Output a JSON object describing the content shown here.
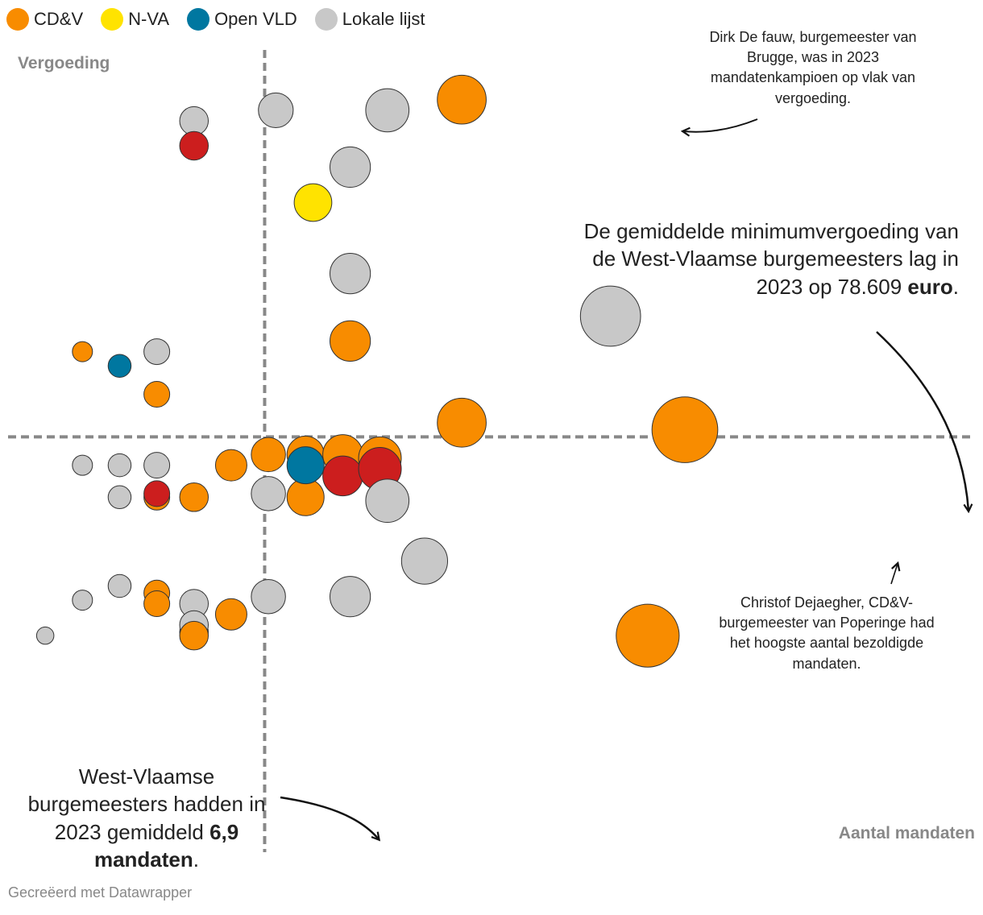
{
  "legend": [
    {
      "label": "CD&V",
      "color": "#f88c00"
    },
    {
      "label": "N-VA",
      "color": "#ffe300"
    },
    {
      "label": "Open VLD",
      "color": "#0077a0"
    },
    {
      "label": "Lokale lijst",
      "color": "#c8c8c8"
    }
  ],
  "chart_data": {
    "type": "scatter",
    "title": "",
    "xlabel": "Aantal mandaten",
    "ylabel": "Vergoeding",
    "xlim": [
      0,
      26
    ],
    "ylim": [
      0,
      11.3
    ],
    "reference_lines": {
      "x_average": 6.9,
      "y_average": 5.85
    },
    "size_encodes": "Aantal mandaten",
    "party_colors": {
      "CD&V": "#f88c00",
      "N-VA": "#ffe300",
      "Open VLD": "#0077a0",
      "Lokale lijst": "#c8c8c8",
      "Andere": "#cc1e1e"
    },
    "points": [
      {
        "x": 5.0,
        "y": 10.3,
        "party": "Lokale lijst"
      },
      {
        "x": 5.0,
        "y": 9.95,
        "party": "Andere"
      },
      {
        "x": 7.2,
        "y": 10.45,
        "party": "Lokale lijst"
      },
      {
        "x": 10.2,
        "y": 10.45,
        "party": "Lokale lijst"
      },
      {
        "x": 12.2,
        "y": 10.6,
        "party": "CD&V"
      },
      {
        "x": 9.2,
        "y": 9.65,
        "party": "Lokale lijst"
      },
      {
        "x": 8.2,
        "y": 9.15,
        "party": "N-VA"
      },
      {
        "x": 9.2,
        "y": 8.15,
        "party": "Lokale lijst"
      },
      {
        "x": 9.2,
        "y": 7.2,
        "party": "CD&V"
      },
      {
        "x": 16.2,
        "y": 7.55,
        "party": "Lokale lijst"
      },
      {
        "x": 2.0,
        "y": 7.05,
        "party": "CD&V"
      },
      {
        "x": 3.0,
        "y": 6.85,
        "party": "Open VLD"
      },
      {
        "x": 4.0,
        "y": 7.05,
        "party": "Lokale lijst"
      },
      {
        "x": 4.0,
        "y": 6.45,
        "party": "CD&V"
      },
      {
        "x": 12.2,
        "y": 6.05,
        "party": "CD&V"
      },
      {
        "x": 18.2,
        "y": 5.95,
        "party": "CD&V"
      },
      {
        "x": 2.0,
        "y": 5.45,
        "party": "Lokale lijst"
      },
      {
        "x": 3.0,
        "y": 5.45,
        "party": "Lokale lijst"
      },
      {
        "x": 4.0,
        "y": 5.45,
        "party": "Lokale lijst"
      },
      {
        "x": 3.0,
        "y": 5.0,
        "party": "Lokale lijst"
      },
      {
        "x": 4.0,
        "y": 5.0,
        "party": "CD&V"
      },
      {
        "x": 4.0,
        "y": 5.05,
        "party": "Andere"
      },
      {
        "x": 5.0,
        "y": 5.0,
        "party": "CD&V"
      },
      {
        "x": 6.0,
        "y": 5.45,
        "party": "CD&V"
      },
      {
        "x": 7.0,
        "y": 5.6,
        "party": "CD&V"
      },
      {
        "x": 7.0,
        "y": 5.05,
        "party": "Lokale lijst"
      },
      {
        "x": 8.0,
        "y": 5.6,
        "party": "CD&V"
      },
      {
        "x": 8.0,
        "y": 5.0,
        "party": "CD&V"
      },
      {
        "x": 8.0,
        "y": 5.45,
        "party": "Open VLD"
      },
      {
        "x": 9.0,
        "y": 5.6,
        "party": "CD&V"
      },
      {
        "x": 9.0,
        "y": 5.3,
        "party": "Andere"
      },
      {
        "x": 10.0,
        "y": 5.55,
        "party": "CD&V"
      },
      {
        "x": 10.0,
        "y": 5.4,
        "party": "Andere"
      },
      {
        "x": 10.2,
        "y": 4.95,
        "party": "Lokale lijst"
      },
      {
        "x": 11.2,
        "y": 4.1,
        "party": "Lokale lijst"
      },
      {
        "x": 9.2,
        "y": 3.6,
        "party": "Lokale lijst"
      },
      {
        "x": 17.2,
        "y": 3.05,
        "party": "CD&V"
      },
      {
        "x": 2.0,
        "y": 3.55,
        "party": "Lokale lijst"
      },
      {
        "x": 3.0,
        "y": 3.75,
        "party": "Lokale lijst"
      },
      {
        "x": 4.0,
        "y": 3.65,
        "party": "CD&V"
      },
      {
        "x": 4.0,
        "y": 3.5,
        "party": "CD&V"
      },
      {
        "x": 5.0,
        "y": 3.5,
        "party": "Lokale lijst"
      },
      {
        "x": 5.0,
        "y": 3.1,
        "party": "Lokale lijst"
      },
      {
        "x": 5.0,
        "y": 3.2,
        "party": "Lokale lijst"
      },
      {
        "x": 5.0,
        "y": 3.05,
        "party": "CD&V"
      },
      {
        "x": 6.0,
        "y": 3.35,
        "party": "CD&V"
      },
      {
        "x": 7.0,
        "y": 3.6,
        "party": "Lokale lijst"
      },
      {
        "x": 1.0,
        "y": 3.05,
        "party": "Lokale lijst"
      }
    ]
  },
  "annotations": {
    "top_right": "Dirk De fauw, burgemeester van Brugge, was in 2023 mandatenkampioen op vlak van vergoeding.",
    "mid_right_plain": "De gemiddelde minimumvergoeding van de West-Vlaamse burgemeesters lag in 2023 op 78.609",
    "mid_right_bold": "euro",
    "bottom_right": "Christof Dejaegher, CD&V-burgemeester van Poperinge had het hoogste aantal bezoldigde mandaten.",
    "bottom_left_plain": "West-Vlaamse burgemeesters hadden in 2023 gemiddeld",
    "bottom_left_bold": "6,9 mandaten"
  },
  "footer": "Gecreëerd met Datawrapper"
}
